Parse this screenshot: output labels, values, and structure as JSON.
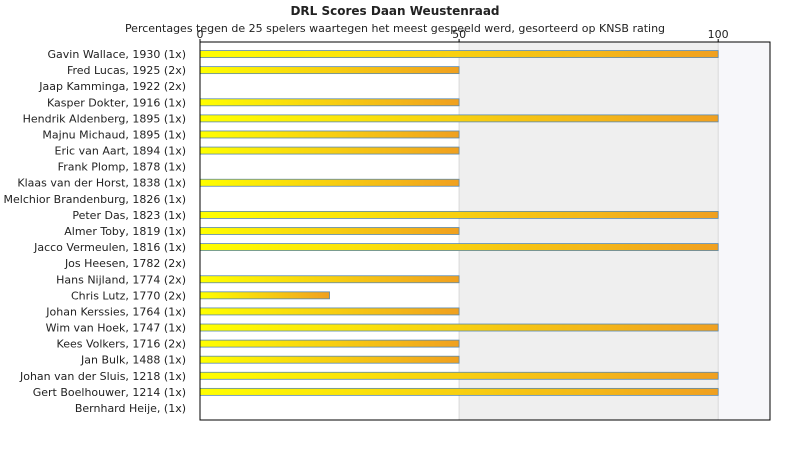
{
  "chart_data": {
    "type": "bar",
    "orientation": "horizontal",
    "title": "DRL Scores Daan Weustenraad",
    "subtitle": "Percentages tegen de 25 spelers waartegen het meest gespeeld werd, gesorteerd op KNSB rating",
    "xlim": [
      0,
      110
    ],
    "xticks": [
      0,
      50,
      100
    ],
    "grid": true,
    "legend": "none",
    "categories": [
      "Gavin Wallace, 1930 (1x)",
      "Fred Lucas, 1925 (2x)",
      "Jaap Kamminga, 1922 (2x)",
      "Kasper Dokter, 1916 (1x)",
      "Hendrik Aldenberg, 1895 (1x)",
      "Majnu Michaud, 1895 (1x)",
      "Eric van Aart, 1894 (1x)",
      "Frank Plomp, 1878 (1x)",
      "Klaas van der Horst, 1838 (1x)",
      "Melchior Brandenburg, 1826 (1x)",
      "Peter Das, 1823 (1x)",
      "Almer Toby, 1819 (1x)",
      "Jacco Vermeulen, 1816 (1x)",
      "Jos Heesen, 1782 (2x)",
      "Hans Nijland, 1774 (2x)",
      "Chris Lutz, 1770 (2x)",
      "Johan Kerssies, 1764 (1x)",
      "Wim van Hoek, 1747 (1x)",
      "Kees Volkers, 1716 (2x)",
      "Jan Bulk, 1488 (1x)",
      "Johan van der Sluis, 1218 (1x)",
      "Gert Boelhouwer, 1214 (1x)",
      "Bernhard Heije,  (1x)"
    ],
    "values": [
      100,
      50,
      0,
      50,
      100,
      50,
      50,
      0,
      50,
      0,
      100,
      50,
      100,
      0,
      50,
      25,
      50,
      100,
      50,
      50,
      100,
      100,
      0
    ],
    "colors": {
      "bar_left": "#ffff00",
      "bar_right": "#f0a020",
      "bar_edge": "#5a8ab0",
      "band_alt": "#efefef",
      "band_light": "#f7f7fa",
      "grid": "#d8d8d8",
      "axis": "#000000"
    }
  }
}
